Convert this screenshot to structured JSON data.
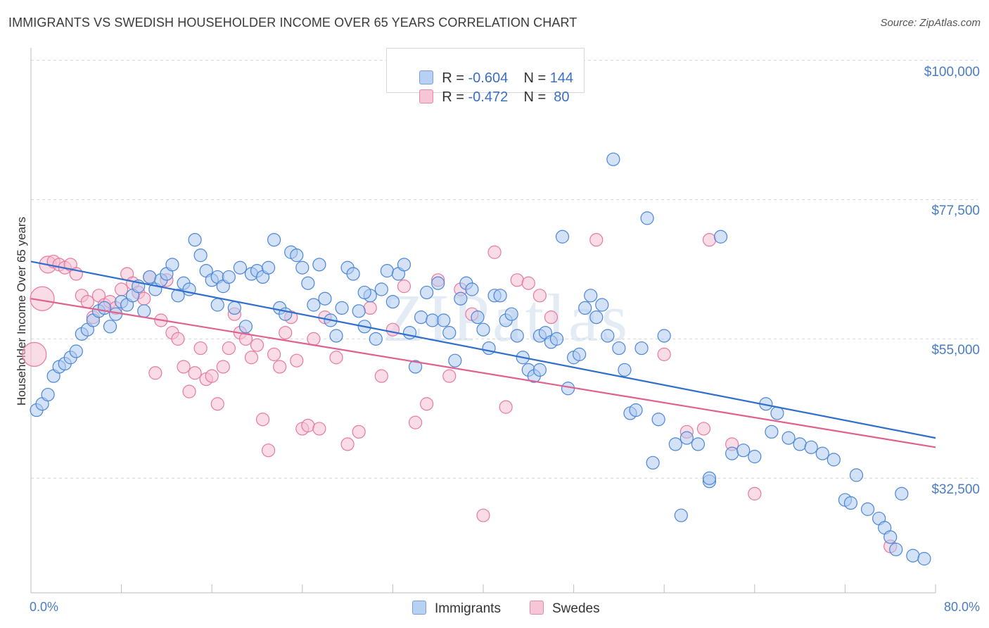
{
  "title": "IMMIGRANTS VS SWEDISH HOUSEHOLDER INCOME OVER 65 YEARS CORRELATION CHART",
  "source": "Source: ZipAtlas.com",
  "colors": {
    "blue": "#4a86d8",
    "blue_fill": "#aecbf1",
    "blue_line": "#2f6fcb",
    "pink": "#e8799e",
    "pink_fill": "#f6c0d3",
    "pink_line": "#e0608e",
    "tick_text": "#4a7cc5"
  },
  "legend": {
    "rows": [
      {
        "r_label": "R = ",
        "r_value": "-0.604",
        "n_label": "N = ",
        "n_value": "144"
      },
      {
        "r_label": "R = ",
        "r_value": "-0.472",
        "n_label": "N = ",
        "n_value": " 80"
      }
    ]
  },
  "bottom_legend": {
    "immigrants": "Immigrants",
    "swedes": "Swedes"
  },
  "chart_data": {
    "type": "scatter",
    "xlabel": "",
    "ylabel": "Householder Income Over 65 years",
    "xlim": [
      0,
      80
    ],
    "ylim": [
      14000,
      102000
    ],
    "x_tick_labels": [
      "0.0%",
      "80.0%"
    ],
    "y_ticks": [
      {
        "value": 100000,
        "label": "$100,000"
      },
      {
        "value": 77500,
        "label": "$77,500"
      },
      {
        "value": 55000,
        "label": "$55,000"
      },
      {
        "value": 32500,
        "label": "$32,500"
      }
    ],
    "watermark": "ZIPatlas",
    "series": [
      {
        "name": "Immigrants",
        "r": -0.604,
        "n": 144,
        "trend": {
          "x": [
            0,
            80
          ],
          "y": [
            67500,
            39000
          ]
        },
        "points": [
          [
            0.5,
            43500
          ],
          [
            1,
            44500
          ],
          [
            1.5,
            46000
          ],
          [
            2,
            49000
          ],
          [
            2.5,
            50500
          ],
          [
            3,
            51000
          ],
          [
            3.5,
            52000
          ],
          [
            4,
            53000
          ],
          [
            4.5,
            55800
          ],
          [
            5,
            56500
          ],
          [
            5.5,
            58000
          ],
          [
            6,
            59500
          ],
          [
            6.5,
            60000
          ],
          [
            7,
            57000
          ],
          [
            7.5,
            59000
          ],
          [
            8,
            61000
          ],
          [
            8.5,
            60500
          ],
          [
            9,
            62000
          ],
          [
            9.5,
            63500
          ],
          [
            10,
            59500
          ],
          [
            10.5,
            65000
          ],
          [
            11,
            63000
          ],
          [
            11.5,
            64500
          ],
          [
            12,
            65500
          ],
          [
            12.5,
            67000
          ],
          [
            13,
            62000
          ],
          [
            13.5,
            64000
          ],
          [
            14,
            63000
          ],
          [
            14.5,
            71000
          ],
          [
            15,
            68500
          ],
          [
            15.5,
            66000
          ],
          [
            16,
            64500
          ],
          [
            16.5,
            65000
          ],
          [
            17,
            63500
          ],
          [
            17.5,
            65000
          ],
          [
            18,
            60000
          ],
          [
            18.5,
            66500
          ],
          [
            19,
            57000
          ],
          [
            19.5,
            65500
          ],
          [
            20,
            66000
          ],
          [
            20.5,
            65000
          ],
          [
            21,
            66500
          ],
          [
            21.5,
            71000
          ],
          [
            22,
            60000
          ],
          [
            22.5,
            59000
          ],
          [
            23,
            69000
          ],
          [
            23.5,
            68500
          ],
          [
            24,
            66500
          ],
          [
            24.5,
            64000
          ],
          [
            25,
            60500
          ],
          [
            25.5,
            67000
          ],
          [
            26,
            61500
          ],
          [
            26.5,
            58000
          ],
          [
            27,
            55500
          ],
          [
            27.5,
            60000
          ],
          [
            28,
            66500
          ],
          [
            28.5,
            65500
          ],
          [
            29,
            59500
          ],
          [
            29.5,
            57000
          ],
          [
            30,
            62000
          ],
          [
            30.5,
            55000
          ],
          [
            31,
            63000
          ],
          [
            31.5,
            66000
          ],
          [
            32,
            61000
          ],
          [
            32.5,
            65500
          ],
          [
            33,
            67000
          ],
          [
            33.5,
            56000
          ],
          [
            34,
            50500
          ],
          [
            34.5,
            58500
          ],
          [
            35,
            62500
          ],
          [
            35.5,
            58000
          ],
          [
            36,
            64000
          ],
          [
            36.5,
            58000
          ],
          [
            37,
            56000
          ],
          [
            37.5,
            51500
          ],
          [
            38,
            61500
          ],
          [
            38.5,
            64000
          ],
          [
            39,
            63000
          ],
          [
            39.5,
            58500
          ],
          [
            40,
            56500
          ],
          [
            40.5,
            53500
          ],
          [
            41,
            62000
          ],
          [
            41.5,
            62000
          ],
          [
            42,
            58000
          ],
          [
            42.5,
            59000
          ],
          [
            43,
            55500
          ],
          [
            43.5,
            52000
          ],
          [
            44,
            50000
          ],
          [
            44.5,
            49000
          ],
          [
            45,
            55500
          ],
          [
            45.5,
            56000
          ],
          [
            46,
            54500
          ],
          [
            46.5,
            55000
          ],
          [
            47,
            71500
          ],
          [
            47.5,
            47000
          ],
          [
            48,
            52000
          ],
          [
            48.5,
            52500
          ],
          [
            49,
            60000
          ],
          [
            49.5,
            62000
          ],
          [
            50,
            58500
          ],
          [
            50.5,
            60500
          ],
          [
            51,
            55500
          ],
          [
            51.5,
            84000
          ],
          [
            52,
            53500
          ],
          [
            52.5,
            50000
          ],
          [
            53,
            43000
          ],
          [
            53.5,
            43500
          ],
          [
            54,
            53500
          ],
          [
            54.5,
            74500
          ],
          [
            55,
            35000
          ],
          [
            55.5,
            42000
          ],
          [
            56,
            55500
          ],
          [
            57,
            38000
          ],
          [
            57.5,
            26500
          ],
          [
            58,
            39000
          ],
          [
            59,
            38000
          ],
          [
            60,
            32000
          ],
          [
            61,
            71500
          ],
          [
            62,
            36500
          ],
          [
            63,
            37000
          ],
          [
            64,
            36000
          ],
          [
            65,
            44500
          ],
          [
            65.5,
            40000
          ],
          [
            66,
            43000
          ],
          [
            67,
            39000
          ],
          [
            68,
            38000
          ],
          [
            69,
            37500
          ],
          [
            70,
            36500
          ],
          [
            71,
            35500
          ],
          [
            72,
            29000
          ],
          [
            72.5,
            28500
          ],
          [
            73,
            33000
          ],
          [
            74,
            27500
          ],
          [
            75,
            26000
          ],
          [
            75.5,
            24500
          ],
          [
            76,
            23000
          ],
          [
            76.5,
            21000
          ],
          [
            77,
            30000
          ],
          [
            78,
            20000
          ],
          [
            79,
            19500
          ],
          [
            16.5,
            60500
          ],
          [
            29.5,
            62500
          ],
          [
            45,
            50000
          ],
          [
            60,
            32500
          ]
        ]
      },
      {
        "name": "Swedes",
        "r": -0.472,
        "n": 80,
        "trend": {
          "x": [
            0,
            80
          ],
          "y": [
            61500,
            37500
          ]
        },
        "points": [
          [
            0.3,
            52500
          ],
          [
            1,
            61500
          ],
          [
            1.5,
            67000
          ],
          [
            2,
            67500
          ],
          [
            2.5,
            67000
          ],
          [
            3,
            66500
          ],
          [
            3.5,
            67000
          ],
          [
            4,
            65500
          ],
          [
            4.5,
            62000
          ],
          [
            5,
            61000
          ],
          [
            5.5,
            58500
          ],
          [
            6,
            62000
          ],
          [
            6.5,
            60500
          ],
          [
            7,
            61000
          ],
          [
            7.5,
            60000
          ],
          [
            8,
            63000
          ],
          [
            8.5,
            65500
          ],
          [
            9,
            64000
          ],
          [
            9.5,
            62500
          ],
          [
            10,
            61500
          ],
          [
            10.5,
            65000
          ],
          [
            11,
            49500
          ],
          [
            11.5,
            58000
          ],
          [
            12,
            64500
          ],
          [
            12.5,
            56000
          ],
          [
            13,
            55000
          ],
          [
            13.5,
            50500
          ],
          [
            14,
            46500
          ],
          [
            14.5,
            49500
          ],
          [
            15,
            53500
          ],
          [
            15.5,
            48500
          ],
          [
            16,
            49000
          ],
          [
            16.5,
            44500
          ],
          [
            17,
            50500
          ],
          [
            17.5,
            53500
          ],
          [
            18,
            59000
          ],
          [
            18.5,
            56000
          ],
          [
            19,
            55000
          ],
          [
            19.5,
            52000
          ],
          [
            20,
            54000
          ],
          [
            20.5,
            42000
          ],
          [
            21,
            37000
          ],
          [
            21.5,
            52500
          ],
          [
            22,
            50500
          ],
          [
            22.5,
            56000
          ],
          [
            23,
            58500
          ],
          [
            23.5,
            51500
          ],
          [
            24,
            40500
          ],
          [
            24.5,
            41000
          ],
          [
            25,
            55000
          ],
          [
            25.5,
            40500
          ],
          [
            26,
            58500
          ],
          [
            27,
            52000
          ],
          [
            28,
            38000
          ],
          [
            29,
            40000
          ],
          [
            30,
            60000
          ],
          [
            31,
            49000
          ],
          [
            32,
            56500
          ],
          [
            33,
            63500
          ],
          [
            34,
            41500
          ],
          [
            35,
            44500
          ],
          [
            36,
            64500
          ],
          [
            37,
            49000
          ],
          [
            38,
            63000
          ],
          [
            39,
            59000
          ],
          [
            40,
            26500
          ],
          [
            41,
            69000
          ],
          [
            42,
            44000
          ],
          [
            43,
            64500
          ],
          [
            44,
            64000
          ],
          [
            45,
            62000
          ],
          [
            46,
            58500
          ],
          [
            50,
            71000
          ],
          [
            56,
            52500
          ],
          [
            58,
            40000
          ],
          [
            60,
            71000
          ],
          [
            62,
            38000
          ],
          [
            64,
            30000
          ],
          [
            76,
            21500
          ],
          [
            59.5,
            40500
          ]
        ]
      }
    ]
  }
}
